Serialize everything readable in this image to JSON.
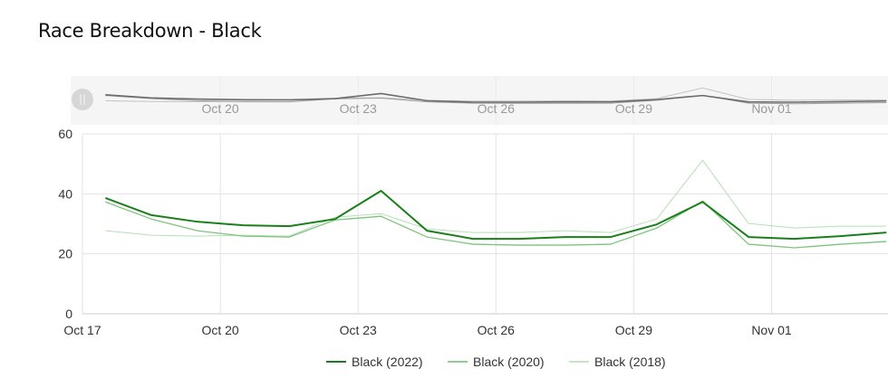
{
  "title": "Race Breakdown - Black",
  "chart_data": {
    "type": "line",
    "title": "Race Breakdown - Black",
    "xlabel": "",
    "ylabel": "",
    "ylim": [
      0,
      60
    ],
    "yticks": [
      0,
      20,
      40,
      60
    ],
    "xtick_labels": [
      "Oct 17",
      "Oct 20",
      "Oct 23",
      "Oct 26",
      "Oct 29",
      "Nov 01"
    ],
    "navigator_xtick_labels": [
      "Oct 20",
      "Oct 23",
      "Oct 26",
      "Oct 29",
      "Nov 01"
    ],
    "grid": true,
    "legend_position": "bottom",
    "x": [
      17.5,
      18.5,
      19.5,
      20.5,
      21.5,
      22.5,
      23.5,
      24.5,
      25.5,
      26.5,
      27.5,
      28.5,
      29.5,
      30.5,
      31.5,
      32.5,
      33.5,
      34.5
    ],
    "series": [
      {
        "name": "Black (2022)",
        "color": "#1a7f1a",
        "width": 2,
        "values": [
          38.6,
          32.9,
          30.7,
          29.5,
          29.2,
          31.6,
          41.0,
          27.7,
          25.0,
          25.0,
          25.6,
          25.6,
          29.8,
          37.3,
          25.6,
          25.0,
          25.9,
          27.1
        ]
      },
      {
        "name": "Black (2020)",
        "color": "#7cc47c",
        "width": 1.3,
        "values": [
          37.3,
          31.6,
          27.7,
          25.9,
          25.6,
          31.3,
          32.5,
          25.6,
          23.2,
          22.9,
          22.9,
          23.2,
          28.6,
          37.6,
          23.2,
          22.0,
          23.2,
          24.1
        ]
      },
      {
        "name": "Black (2018)",
        "color": "#b8deb8",
        "width": 1,
        "values": [
          27.7,
          26.2,
          25.9,
          26.2,
          25.9,
          32.2,
          33.4,
          28.3,
          27.1,
          27.1,
          27.7,
          27.1,
          31.6,
          51.2,
          30.1,
          28.6,
          29.2,
          29.2
        ]
      }
    ]
  },
  "legend": [
    {
      "label": "Black (2022)",
      "color": "#1a7f1a"
    },
    {
      "label": "Black (2020)",
      "color": "#8fcf8f"
    },
    {
      "label": "Black (2018)",
      "color": "#c5e6c5"
    }
  ],
  "navigator": {
    "handle_icon": "pause-handle-icon"
  }
}
